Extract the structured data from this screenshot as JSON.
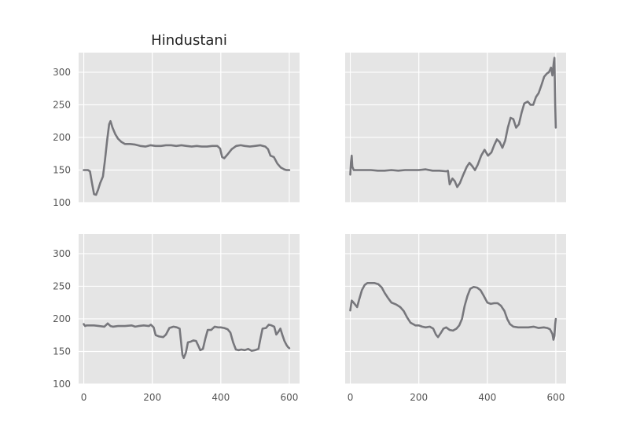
{
  "chart_data": {
    "type": "line",
    "layout": "2x2",
    "shared_x": true,
    "shared_y": true,
    "xlim": [
      -15,
      630
    ],
    "ylim": [
      100,
      330
    ],
    "xticks": [
      0,
      200,
      400,
      600
    ],
    "yticks": [
      100,
      150,
      200,
      250,
      300
    ],
    "grid": true,
    "series_color": "#77777c",
    "background_color": "#e5e5e5",
    "panels": [
      {
        "title": "Hindustani",
        "points": [
          [
            0,
            150
          ],
          [
            12,
            150
          ],
          [
            18,
            148
          ],
          [
            24,
            130
          ],
          [
            30,
            113
          ],
          [
            36,
            112
          ],
          [
            42,
            120
          ],
          [
            48,
            130
          ],
          [
            56,
            140
          ],
          [
            62,
            165
          ],
          [
            68,
            195
          ],
          [
            74,
            220
          ],
          [
            78,
            225
          ],
          [
            84,
            215
          ],
          [
            92,
            205
          ],
          [
            100,
            198
          ],
          [
            110,
            193
          ],
          [
            120,
            190
          ],
          [
            135,
            190
          ],
          [
            150,
            189
          ],
          [
            165,
            187
          ],
          [
            180,
            186
          ],
          [
            195,
            188
          ],
          [
            210,
            187
          ],
          [
            225,
            187
          ],
          [
            240,
            188
          ],
          [
            255,
            188
          ],
          [
            270,
            187
          ],
          [
            285,
            188
          ],
          [
            300,
            187
          ],
          [
            315,
            186
          ],
          [
            330,
            187
          ],
          [
            345,
            186
          ],
          [
            360,
            186
          ],
          [
            375,
            187
          ],
          [
            390,
            187
          ],
          [
            398,
            183
          ],
          [
            404,
            170
          ],
          [
            410,
            168
          ],
          [
            420,
            174
          ],
          [
            432,
            182
          ],
          [
            445,
            187
          ],
          [
            458,
            188
          ],
          [
            470,
            187
          ],
          [
            485,
            186
          ],
          [
            500,
            187
          ],
          [
            515,
            188
          ],
          [
            530,
            186
          ],
          [
            538,
            182
          ],
          [
            545,
            172
          ],
          [
            555,
            170
          ],
          [
            565,
            160
          ],
          [
            575,
            154
          ],
          [
            585,
            151
          ],
          [
            592,
            150
          ],
          [
            600,
            150
          ]
        ]
      },
      {
        "title": "",
        "points": [
          [
            0,
            143
          ],
          [
            2,
            162
          ],
          [
            4,
            172
          ],
          [
            6,
            155
          ],
          [
            10,
            150
          ],
          [
            20,
            150
          ],
          [
            40,
            150
          ],
          [
            60,
            150
          ],
          [
            80,
            149
          ],
          [
            100,
            149
          ],
          [
            120,
            150
          ],
          [
            140,
            149
          ],
          [
            160,
            150
          ],
          [
            180,
            150
          ],
          [
            200,
            150
          ],
          [
            220,
            151
          ],
          [
            240,
            149
          ],
          [
            260,
            149
          ],
          [
            280,
            148
          ],
          [
            285,
            149
          ],
          [
            290,
            128
          ],
          [
            298,
            137
          ],
          [
            305,
            133
          ],
          [
            312,
            124
          ],
          [
            320,
            130
          ],
          [
            330,
            143
          ],
          [
            340,
            155
          ],
          [
            348,
            161
          ],
          [
            356,
            156
          ],
          [
            364,
            150
          ],
          [
            372,
            158
          ],
          [
            382,
            172
          ],
          [
            392,
            181
          ],
          [
            402,
            172
          ],
          [
            412,
            177
          ],
          [
            420,
            188
          ],
          [
            428,
            197
          ],
          [
            436,
            193
          ],
          [
            444,
            184
          ],
          [
            452,
            195
          ],
          [
            460,
            215
          ],
          [
            468,
            230
          ],
          [
            476,
            228
          ],
          [
            484,
            215
          ],
          [
            492,
            220
          ],
          [
            500,
            238
          ],
          [
            508,
            252
          ],
          [
            518,
            255
          ],
          [
            526,
            250
          ],
          [
            534,
            250
          ],
          [
            542,
            262
          ],
          [
            550,
            268
          ],
          [
            558,
            280
          ],
          [
            566,
            293
          ],
          [
            574,
            298
          ],
          [
            580,
            300
          ],
          [
            586,
            307
          ],
          [
            590,
            295
          ],
          [
            594,
            315
          ],
          [
            596,
            322
          ],
          [
            598,
            250
          ],
          [
            600,
            215
          ]
        ]
      },
      {
        "title": "",
        "points": [
          [
            0,
            192
          ],
          [
            4,
            189
          ],
          [
            8,
            190
          ],
          [
            16,
            190
          ],
          [
            30,
            190
          ],
          [
            45,
            189
          ],
          [
            60,
            188
          ],
          [
            70,
            193
          ],
          [
            78,
            189
          ],
          [
            85,
            188
          ],
          [
            100,
            189
          ],
          [
            120,
            189
          ],
          [
            140,
            190
          ],
          [
            150,
            188
          ],
          [
            160,
            189
          ],
          [
            175,
            190
          ],
          [
            190,
            189
          ],
          [
            196,
            191
          ],
          [
            204,
            187
          ],
          [
            210,
            175
          ],
          [
            220,
            173
          ],
          [
            232,
            172
          ],
          [
            240,
            176
          ],
          [
            250,
            186
          ],
          [
            262,
            188
          ],
          [
            272,
            187
          ],
          [
            280,
            185
          ],
          [
            288,
            145
          ],
          [
            292,
            140
          ],
          [
            298,
            148
          ],
          [
            304,
            164
          ],
          [
            312,
            165
          ],
          [
            320,
            167
          ],
          [
            328,
            166
          ],
          [
            335,
            158
          ],
          [
            340,
            152
          ],
          [
            348,
            154
          ],
          [
            355,
            170
          ],
          [
            362,
            183
          ],
          [
            372,
            183
          ],
          [
            382,
            188
          ],
          [
            392,
            187
          ],
          [
            400,
            187
          ],
          [
            410,
            186
          ],
          [
            420,
            184
          ],
          [
            428,
            179
          ],
          [
            436,
            164
          ],
          [
            444,
            153
          ],
          [
            452,
            152
          ],
          [
            460,
            153
          ],
          [
            470,
            152
          ],
          [
            480,
            154
          ],
          [
            490,
            151
          ],
          [
            500,
            152
          ],
          [
            510,
            154
          ],
          [
            516,
            170
          ],
          [
            522,
            185
          ],
          [
            532,
            186
          ],
          [
            540,
            191
          ],
          [
            548,
            190
          ],
          [
            556,
            188
          ],
          [
            562,
            176
          ],
          [
            568,
            180
          ],
          [
            574,
            185
          ],
          [
            580,
            175
          ],
          [
            586,
            166
          ],
          [
            592,
            160
          ],
          [
            596,
            157
          ],
          [
            600,
            155
          ]
        ]
      },
      {
        "title": "",
        "points": [
          [
            0,
            213
          ],
          [
            4,
            228
          ],
          [
            8,
            226
          ],
          [
            14,
            222
          ],
          [
            20,
            218
          ],
          [
            26,
            230
          ],
          [
            34,
            244
          ],
          [
            42,
            252
          ],
          [
            50,
            255
          ],
          [
            60,
            255
          ],
          [
            70,
            255
          ],
          [
            82,
            253
          ],
          [
            92,
            248
          ],
          [
            100,
            240
          ],
          [
            110,
            232
          ],
          [
            120,
            225
          ],
          [
            134,
            222
          ],
          [
            146,
            218
          ],
          [
            156,
            212
          ],
          [
            166,
            202
          ],
          [
            176,
            194
          ],
          [
            190,
            190
          ],
          [
            200,
            190
          ],
          [
            210,
            188
          ],
          [
            220,
            187
          ],
          [
            232,
            188
          ],
          [
            242,
            185
          ],
          [
            250,
            176
          ],
          [
            256,
            172
          ],
          [
            264,
            178
          ],
          [
            272,
            185
          ],
          [
            280,
            187
          ],
          [
            290,
            183
          ],
          [
            300,
            182
          ],
          [
            310,
            185
          ],
          [
            318,
            190
          ],
          [
            326,
            200
          ],
          [
            334,
            220
          ],
          [
            342,
            235
          ],
          [
            350,
            246
          ],
          [
            360,
            249
          ],
          [
            370,
            248
          ],
          [
            380,
            244
          ],
          [
            390,
            235
          ],
          [
            400,
            225
          ],
          [
            410,
            223
          ],
          [
            420,
            224
          ],
          [
            430,
            224
          ],
          [
            440,
            220
          ],
          [
            450,
            212
          ],
          [
            458,
            200
          ],
          [
            466,
            192
          ],
          [
            476,
            188
          ],
          [
            490,
            187
          ],
          [
            505,
            187
          ],
          [
            520,
            187
          ],
          [
            535,
            188
          ],
          [
            550,
            186
          ],
          [
            565,
            187
          ],
          [
            575,
            186
          ],
          [
            583,
            184
          ],
          [
            590,
            177
          ],
          [
            593,
            168
          ],
          [
            596,
            174
          ],
          [
            598,
            192
          ],
          [
            600,
            200
          ]
        ]
      }
    ]
  }
}
